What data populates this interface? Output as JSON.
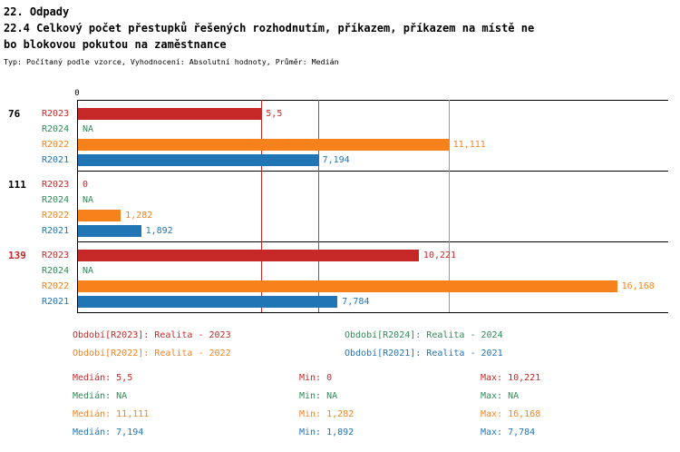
{
  "header": {
    "section": "22. Odpady",
    "title_line1": "22.4 Celkový počet přestupků řešených rozhodnutím, příkazem, příkazem na místě ne",
    "title_line2": "bo blokovou pokutou na zaměstnance",
    "subtitle": "Typ: Počítaný podle vzorce, Vyhodnocení: Absolutní hodnoty, Průměr: Medián"
  },
  "chart_data": {
    "type": "bar",
    "orientation": "horizontal",
    "title": "22.4 Celkový počet přestupků řešených rozhodnutím, příkazem, příkazem na místě nebo blokovou pokutou na zaměstnance",
    "subtitle": "Typ: Počítaný podle vzorce, Vyhodnocení: Absolutní hodnoty, Průměr: Medián",
    "legend_position": "bottom",
    "axis": {
      "min": 0,
      "max": 17.7,
      "tick_label": "0"
    },
    "series_colors": {
      "R2023": "#c62828",
      "R2024": "#2e8b57",
      "R2022": "#f7821b",
      "R2021": "#2076b4"
    },
    "groups": [
      {
        "label": "76",
        "label_color": "#000000",
        "rows": [
          {
            "series": "R2023",
            "value": 5.5,
            "label": "5,5"
          },
          {
            "series": "R2024",
            "value": null,
            "label": "NA"
          },
          {
            "series": "R2022",
            "value": 11.111,
            "label": "11,111"
          },
          {
            "series": "R2021",
            "value": 7.194,
            "label": "7,194"
          }
        ]
      },
      {
        "label": "111",
        "label_color": "#000000",
        "rows": [
          {
            "series": "R2023",
            "value": 0,
            "label": "0"
          },
          {
            "series": "R2024",
            "value": null,
            "label": "NA"
          },
          {
            "series": "R2022",
            "value": 1.282,
            "label": "1,282"
          },
          {
            "series": "R2021",
            "value": 1.892,
            "label": "1,892"
          }
        ]
      },
      {
        "label": "139",
        "label_color": "#c62828",
        "rows": [
          {
            "series": "R2023",
            "value": 10.221,
            "label": "10,221"
          },
          {
            "series": "R2024",
            "value": null,
            "label": "NA"
          },
          {
            "series": "R2022",
            "value": 16.168,
            "label": "16,168"
          },
          {
            "series": "R2021",
            "value": 7.784,
            "label": "7,784"
          }
        ]
      }
    ],
    "median_lines": [
      {
        "series": "R2023",
        "value": 5.5
      },
      {
        "series": "R2022",
        "value": 11.111
      },
      {
        "series": "R2021",
        "value": 7.194
      }
    ]
  },
  "legend": [
    {
      "series": "R2023",
      "text": "Období[R2023]: Realita - 2023"
    },
    {
      "series": "R2024",
      "text": "Období[R2024]: Realita - 2024"
    },
    {
      "series": "R2022",
      "text": "Období[R2022]: Realita - 2022"
    },
    {
      "series": "R2021",
      "text": "Období[R2021]: Realita - 2021"
    }
  ],
  "stats": [
    {
      "series": "R2023",
      "median": "Medián: 5,5",
      "min": "Min: 0",
      "max": "Max: 10,221"
    },
    {
      "series": "R2024",
      "median": "Medián: NA",
      "min": "Min: NA",
      "max": "Max: NA"
    },
    {
      "series": "R2022",
      "median": "Medián: 11,111",
      "min": "Min: 1,282",
      "max": "Max: 16,168"
    },
    {
      "series": "R2021",
      "median": "Medián: 7,194",
      "min": "Min: 1,892",
      "max": "Max: 7,784"
    }
  ]
}
